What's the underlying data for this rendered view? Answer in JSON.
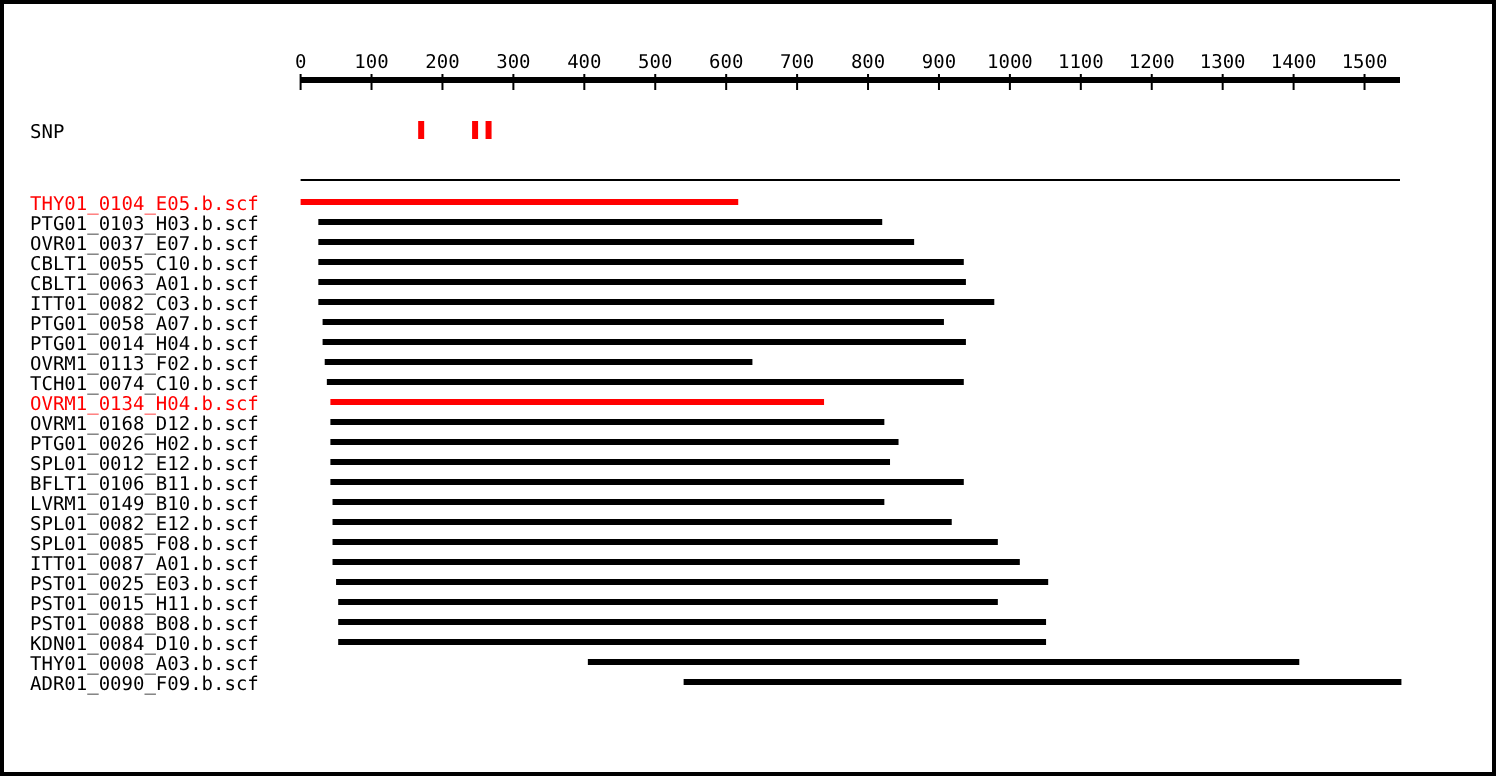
{
  "chart_data": {
    "type": "bar",
    "orientation": "horizontal",
    "xlim": [
      0,
      1550
    ],
    "xticks": [
      0,
      100,
      200,
      300,
      400,
      500,
      600,
      700,
      800,
      900,
      1000,
      1100,
      1200,
      1300,
      1400,
      1500
    ],
    "categories": [
      "SNP",
      null,
      "THY01_0104_E05.b.scf",
      "PTG01_0103_H03.b.scf",
      "OVR01_0037_E07.b.scf",
      "CBLT1_0055_C10.b.scf",
      "CBLT1_0063_A01.b.scf",
      "ITT01_0082_C03.b.scf",
      "PTG01_0058_A07.b.scf",
      "PTG01_0014_H04.b.scf",
      "OVRM1_0113_F02.b.scf",
      "TCH01_0074_C10.b.scf",
      "OVRM1_0134_H04.b.scf",
      "OVRM1_0168_D12.b.scf",
      "PTG01_0026_H02.b.scf",
      "SPL01_0012_E12.b.scf",
      "BFLT1_0106_B11.b.scf",
      "LVRM1_0149_B10.b.scf",
      "SPL01_0082_E12.b.scf",
      "SPL01_0085_F08.b.scf",
      "ITT01_0087_A01.b.scf",
      "PST01_0025_E03.b.scf",
      "PST01_0015_H11.b.scf",
      "PST01_0088_B08.b.scf",
      "KDN01_0084_D10.b.scf",
      "THY01_0008_A03.b.scf",
      "ADR01_0090_F09.b.scf"
    ],
    "series": [
      {
        "base": [
          null,
          0,
          0,
          25,
          25,
          25,
          25,
          25,
          31,
          31,
          34,
          37,
          42,
          42,
          42,
          42,
          42,
          45,
          45,
          45,
          45,
          50,
          53,
          53,
          53,
          405,
          540
        ],
        "values": [
          null,
          1550,
          617,
          795,
          840,
          910,
          913,
          953,
          876,
          907,
          603,
          898,
          696,
          781,
          801,
          789,
          893,
          778,
          873,
          938,
          969,
          1004,
          930,
          998,
          998,
          1003,
          1012
        ],
        "colors": [
          "#000000",
          "#000000",
          "#ff0000",
          "#000000",
          "#000000",
          "#000000",
          "#000000",
          "#000000",
          "#000000",
          "#000000",
          "#000000",
          "#000000",
          "#ff0000",
          "#000000",
          "#000000",
          "#000000",
          "#000000",
          "#000000",
          "#000000",
          "#000000",
          "#000000",
          "#000000",
          "#000000",
          "#000000",
          "#000000",
          "#000000",
          "#000000"
        ]
      },
      {
        "type": "scatter",
        "x": [
          "SNP",
          "SNP",
          "SNP"
        ],
        "values": [
          170,
          246,
          265
        ],
        "color": "#ff0000",
        "marker": "square"
      }
    ]
  }
}
